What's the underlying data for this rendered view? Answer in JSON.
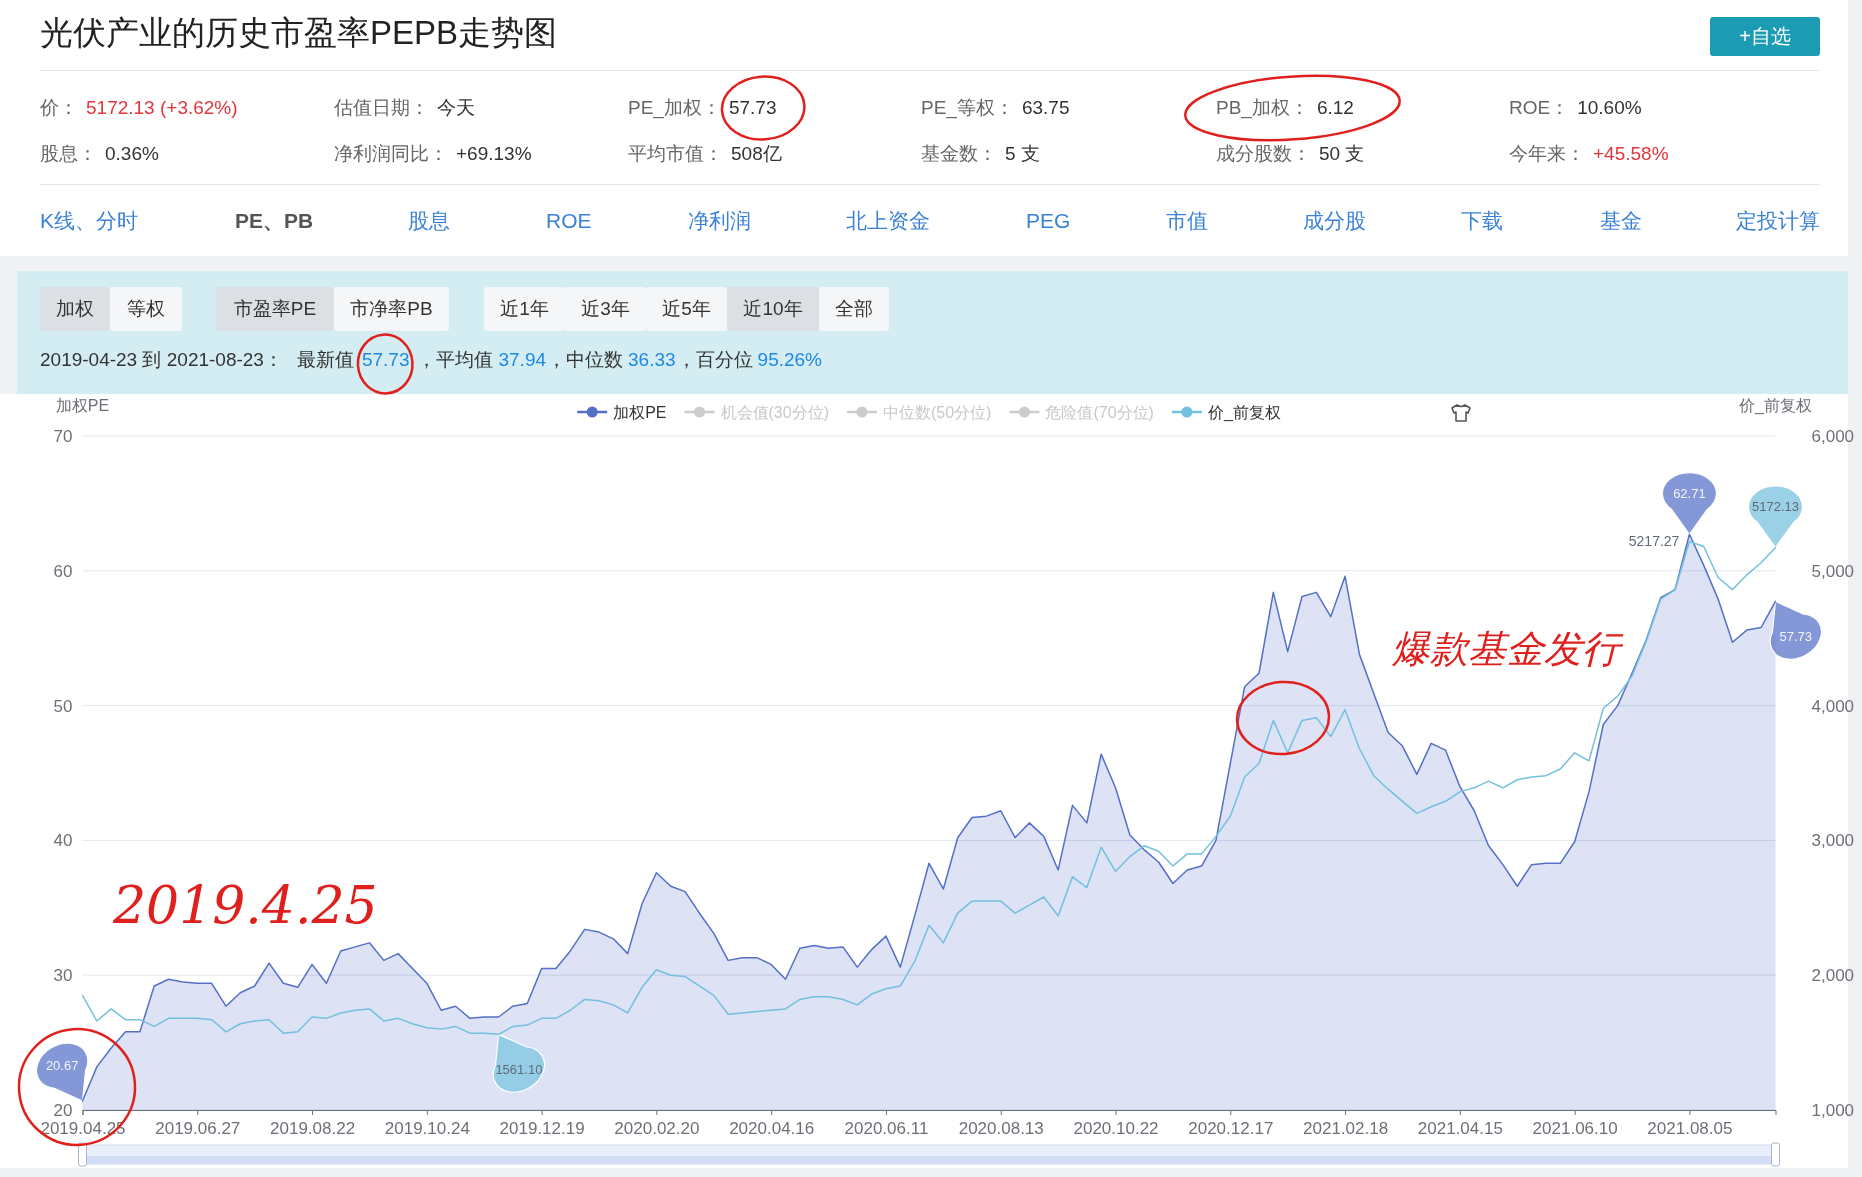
{
  "chart_data": {
    "type": "area",
    "title": "光伏产业的历史市盈率PEPB走势图",
    "ylabel": "加权PE",
    "y2label": "价_前复权",
    "categories": [
      "2019.04.25",
      null,
      null,
      null,
      null,
      null,
      null,
      null,
      "2019.06.27",
      null,
      null,
      null,
      null,
      null,
      null,
      null,
      "2019.08.22",
      null,
      null,
      null,
      null,
      null,
      null,
      null,
      "2019.10.24",
      null,
      null,
      null,
      null,
      null,
      null,
      null,
      "2019.12.19",
      null,
      null,
      null,
      null,
      null,
      null,
      null,
      "2020.02.20",
      null,
      null,
      null,
      null,
      null,
      null,
      null,
      "2020.04.16",
      null,
      null,
      null,
      null,
      null,
      null,
      null,
      "2020.06.11",
      null,
      null,
      null,
      null,
      null,
      null,
      null,
      "2020.08.13",
      null,
      null,
      null,
      null,
      null,
      null,
      null,
      "2020.10.22",
      null,
      null,
      null,
      null,
      null,
      null,
      null,
      "2020.12.17",
      null,
      null,
      null,
      null,
      null,
      null,
      null,
      "2021.02.18",
      null,
      null,
      null,
      null,
      null,
      null,
      null,
      "2021.04.15",
      null,
      null,
      null,
      null,
      null,
      null,
      null,
      "2021.06.10",
      null,
      null,
      null,
      null,
      null,
      null,
      null,
      "2021.08.05",
      null,
      null,
      null,
      null,
      null,
      null
    ],
    "series": [
      {
        "name": "加权PE",
        "type": "area",
        "color": "#5470c6",
        "values": [
          20.67,
          23.2,
          24.6,
          25.8,
          25.8,
          29.2,
          29.7,
          29.5,
          29.4,
          29.4,
          27.7,
          28.7,
          29.2,
          30.9,
          29.4,
          29.1,
          30.8,
          29.4,
          31.8,
          32.1,
          32.4,
          31.1,
          31.6,
          30.5,
          29.4,
          27.4,
          27.7,
          26.8,
          26.9,
          26.9,
          27.7,
          27.9,
          30.5,
          30.5,
          31.8,
          33.4,
          33.2,
          32.7,
          31.6,
          35.3,
          37.6,
          36.6,
          36.2,
          34.6,
          33.1,
          31.1,
          31.3,
          31.3,
          30.8,
          29.7,
          32.0,
          32.2,
          32.0,
          32.1,
          30.6,
          31.9,
          32.9,
          30.6,
          34.4,
          38.3,
          36.4,
          40.2,
          41.7,
          41.8,
          42.2,
          40.2,
          41.3,
          40.3,
          37.8,
          42.6,
          41.3,
          46.4,
          43.9,
          40.4,
          39.3,
          38.4,
          36.8,
          37.8,
          38.1,
          40.0,
          45.7,
          51.4,
          52.4,
          58.4,
          54.0,
          58.1,
          58.4,
          56.6,
          59.6,
          53.8,
          50.9,
          48.0,
          47.0,
          44.9,
          47.2,
          46.7,
          44.0,
          42.2,
          39.6,
          38.2,
          36.6,
          38.2,
          38.3,
          38.3,
          39.9,
          43.6,
          48.6,
          50.0,
          52.4,
          54.9,
          58.0,
          58.6,
          62.71,
          60.4,
          57.9,
          54.7,
          55.6,
          55.8,
          57.73
        ]
      },
      {
        "name": "机会值(30分位)",
        "type": "line",
        "color": "#cccccc",
        "values": [
          null,
          null,
          null,
          null,
          null,
          null,
          null,
          null,
          null,
          null,
          null,
          null,
          null,
          null,
          null,
          null,
          null,
          null,
          null,
          null,
          null,
          null,
          null,
          null,
          null,
          null,
          null,
          null,
          null,
          null,
          null,
          null,
          null,
          null,
          null,
          null,
          null,
          null,
          null,
          null,
          null,
          null,
          null,
          null,
          null,
          null,
          null,
          null,
          null,
          null,
          null,
          null,
          null,
          null,
          null,
          null,
          null,
          null,
          null,
          null,
          null,
          null,
          null,
          null,
          null,
          null,
          null,
          null,
          null,
          null,
          null,
          null,
          null,
          null,
          null,
          null,
          null,
          null,
          null,
          null,
          null,
          null,
          null,
          null,
          null,
          null,
          null,
          null,
          null,
          null,
          null,
          null,
          null,
          null,
          null,
          null,
          null,
          null,
          null,
          null,
          null,
          null,
          null,
          null,
          null,
          null,
          null,
          null,
          null,
          null,
          null,
          null,
          null,
          null,
          null,
          null,
          null,
          null,
          null
        ]
      },
      {
        "name": "中位数(50分位)",
        "type": "line",
        "color": "#cccccc",
        "values": [
          null,
          null,
          null,
          null,
          null,
          null,
          null,
          null,
          null,
          null,
          null,
          null,
          null,
          null,
          null,
          null,
          null,
          null,
          null,
          null,
          null,
          null,
          null,
          null,
          null,
          null,
          null,
          null,
          null,
          null,
          null,
          null,
          null,
          null,
          null,
          null,
          null,
          null,
          null,
          null,
          null,
          null,
          null,
          null,
          null,
          null,
          null,
          null,
          null,
          null,
          null,
          null,
          null,
          null,
          null,
          null,
          null,
          null,
          null,
          null,
          null,
          null,
          null,
          null,
          null,
          null,
          null,
          null,
          null,
          null,
          null,
          null,
          null,
          null,
          null,
          null,
          null,
          null,
          null,
          null,
          null,
          null,
          null,
          null,
          null,
          null,
          null,
          null,
          null,
          null,
          null,
          null,
          null,
          null,
          null,
          null,
          null,
          null,
          null,
          null,
          null,
          null,
          null,
          null,
          null,
          null,
          null,
          null,
          null,
          null,
          null,
          null,
          null,
          null,
          null,
          null,
          null,
          null,
          null
        ]
      },
      {
        "name": "危险值(70分位)",
        "type": "line",
        "color": "#cccccc",
        "values": [
          null,
          null,
          null,
          null,
          null,
          null,
          null,
          null,
          null,
          null,
          null,
          null,
          null,
          null,
          null,
          null,
          null,
          null,
          null,
          null,
          null,
          null,
          null,
          null,
          null,
          null,
          null,
          null,
          null,
          null,
          null,
          null,
          null,
          null,
          null,
          null,
          null,
          null,
          null,
          null,
          null,
          null,
          null,
          null,
          null,
          null,
          null,
          null,
          null,
          null,
          null,
          null,
          null,
          null,
          null,
          null,
          null,
          null,
          null,
          null,
          null,
          null,
          null,
          null,
          null,
          null,
          null,
          null,
          null,
          null,
          null,
          null,
          null,
          null,
          null,
          null,
          null,
          null,
          null,
          null,
          null,
          null,
          null,
          null,
          null,
          null,
          null,
          null,
          null,
          null,
          null,
          null,
          null,
          null,
          null,
          null,
          null,
          null,
          null,
          null,
          null,
          null,
          null,
          null,
          null,
          null,
          null,
          null,
          null,
          null,
          null,
          null,
          null,
          null,
          null,
          null,
          null,
          null,
          null
        ]
      },
      {
        "name": "价_前复权",
        "type": "line",
        "axis": "y2",
        "color": "#73c0de",
        "values": [
          1850,
          1660,
          1750,
          1670,
          1670,
          1620,
          1680,
          1680,
          1680,
          1670,
          1580,
          1640,
          1660,
          1670,
          1570,
          1580,
          1690,
          1680,
          1720,
          1740,
          1750,
          1660,
          1680,
          1640,
          1610,
          1600,
          1620,
          1570,
          1570,
          1561.1,
          1620,
          1630,
          1680,
          1680,
          1740,
          1820,
          1810,
          1780,
          1720,
          1910,
          2040,
          2000,
          1990,
          1920,
          1850,
          1710,
          1720,
          1730,
          1740,
          1750,
          1820,
          1840,
          1840,
          1820,
          1780,
          1860,
          1900,
          1920,
          2100,
          2370,
          2240,
          2460,
          2550,
          2550,
          2550,
          2460,
          2520,
          2580,
          2440,
          2730,
          2650,
          2950,
          2770,
          2880,
          2960,
          2920,
          2810,
          2900,
          2900,
          3030,
          3180,
          3470,
          3570,
          3890,
          3650,
          3890,
          3910,
          3770,
          3970,
          3680,
          3480,
          3380,
          3290,
          3200,
          3250,
          3290,
          3360,
          3390,
          3440,
          3390,
          3450,
          3470,
          3480,
          3530,
          3650,
          3590,
          3980,
          4070,
          4220,
          4480,
          4790,
          4860,
          5217.27,
          5180,
          4950,
          4860,
          4970,
          5060,
          5172.13
        ]
      }
    ],
    "ylim": [
      20,
      70
    ],
    "yticks": [
      20,
      30,
      40,
      50,
      60,
      70
    ],
    "y2lim": [
      1000,
      6000
    ],
    "y2ticks": [
      {
        "value": 1000,
        "label": "1,000"
      },
      {
        "value": 2000,
        "label": "2,000"
      },
      {
        "value": 3000,
        "label": "3,000"
      },
      {
        "value": 4000,
        "label": "4,000"
      },
      {
        "value": 5000,
        "label": "5,000"
      },
      {
        "value": 6000,
        "label": "6,000"
      }
    ],
    "grid": "y",
    "legend": "top",
    "annotations": [
      "20.67",
      "62.71",
      "57.73",
      "1561.10",
      "5217.27",
      "5172.13",
      "价：",
      "5172.13 (+3.62%)",
      "估值日期：",
      "今天",
      "PE_加权：",
      "57.73",
      "PE_等权：",
      "63.75",
      "PB_加权：",
      "6.12",
      "ROE：",
      "10.60%",
      "股息：",
      "0.36%",
      "净利润同比：",
      "+69.13%",
      "平均市值：",
      "508亿",
      "基金数：",
      "5 支",
      "成分股数：",
      "50 支",
      "今年来：",
      "+45.58%",
      "K线、分时",
      "PE、PB",
      "股息",
      "ROE",
      "净利润",
      "北上资金",
      "PEG",
      "市值",
      "成分股",
      "下载",
      "基金",
      "定投计算",
      "+自选",
      "加权",
      "等权",
      "市盈率PE",
      "市净率PB",
      "近1年",
      "近3年",
      "近5年",
      "近10年",
      "全部",
      "2019-04-23 到 2021-08-23：",
      "最新值",
      "57.73",
      "，平均值",
      "37.94",
      "，中位数",
      "36.33",
      "，百分位",
      "95.26%",
      "2019.4.25",
      "爆款基金发行"
    ]
  }
}
